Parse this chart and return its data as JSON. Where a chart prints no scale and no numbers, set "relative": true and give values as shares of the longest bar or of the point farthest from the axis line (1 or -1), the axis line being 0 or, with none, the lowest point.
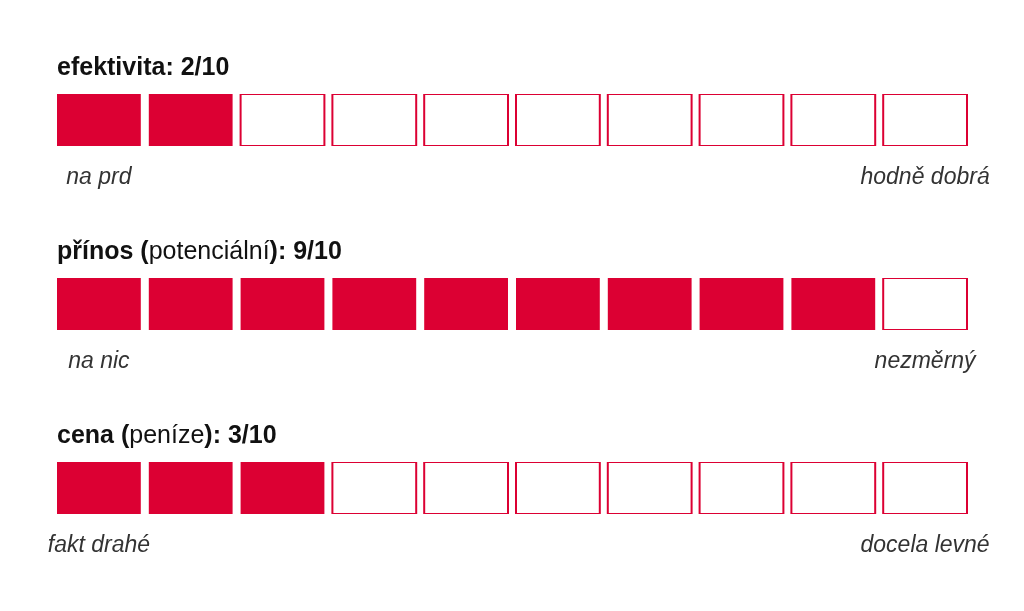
{
  "chart_data": [
    {
      "type": "bar",
      "relative": true,
      "stacked": true,
      "title": "efektivita: 2/10",
      "categories": [
        "na prd",
        null,
        null,
        null,
        null,
        null,
        null,
        null,
        null,
        "hodně dobrá"
      ],
      "series": [
        {
          "color": "#dc0033",
          "values": [
            1,
            1,
            null,
            null,
            null,
            null,
            null,
            null,
            null,
            null
          ]
        },
        {
          "color": "#ffffff",
          "values": [
            null,
            null,
            1,
            1,
            1,
            1,
            1,
            1,
            1,
            1
          ]
        }
      ]
    },
    {
      "type": "bar",
      "relative": true,
      "stacked": true,
      "title": "přínos (potenciální): 9/10",
      "categories": [
        "na nic",
        null,
        null,
        null,
        null,
        null,
        null,
        null,
        null,
        "nezměrný"
      ],
      "series": [
        {
          "color": "#dc0033",
          "values": [
            1,
            1,
            1,
            1,
            1,
            1,
            1,
            1,
            1,
            null
          ]
        },
        {
          "color": "#ffffff",
          "values": [
            null,
            null,
            null,
            null,
            null,
            null,
            null,
            null,
            null,
            1
          ]
        }
      ]
    },
    {
      "type": "bar",
      "relative": true,
      "stacked": true,
      "title": "cena (peníze): 3/10",
      "categories": [
        "fakt drahé",
        null,
        null,
        null,
        null,
        null,
        null,
        null,
        null,
        "docela levné"
      ],
      "series": [
        {
          "color": "#dc0033",
          "values": [
            1,
            1,
            1,
            null,
            null,
            null,
            null,
            null,
            null,
            null
          ]
        },
        {
          "color": "#ffffff",
          "values": [
            null,
            null,
            null,
            1,
            1,
            1,
            1,
            1,
            1,
            1
          ]
        }
      ]
    }
  ]
}
